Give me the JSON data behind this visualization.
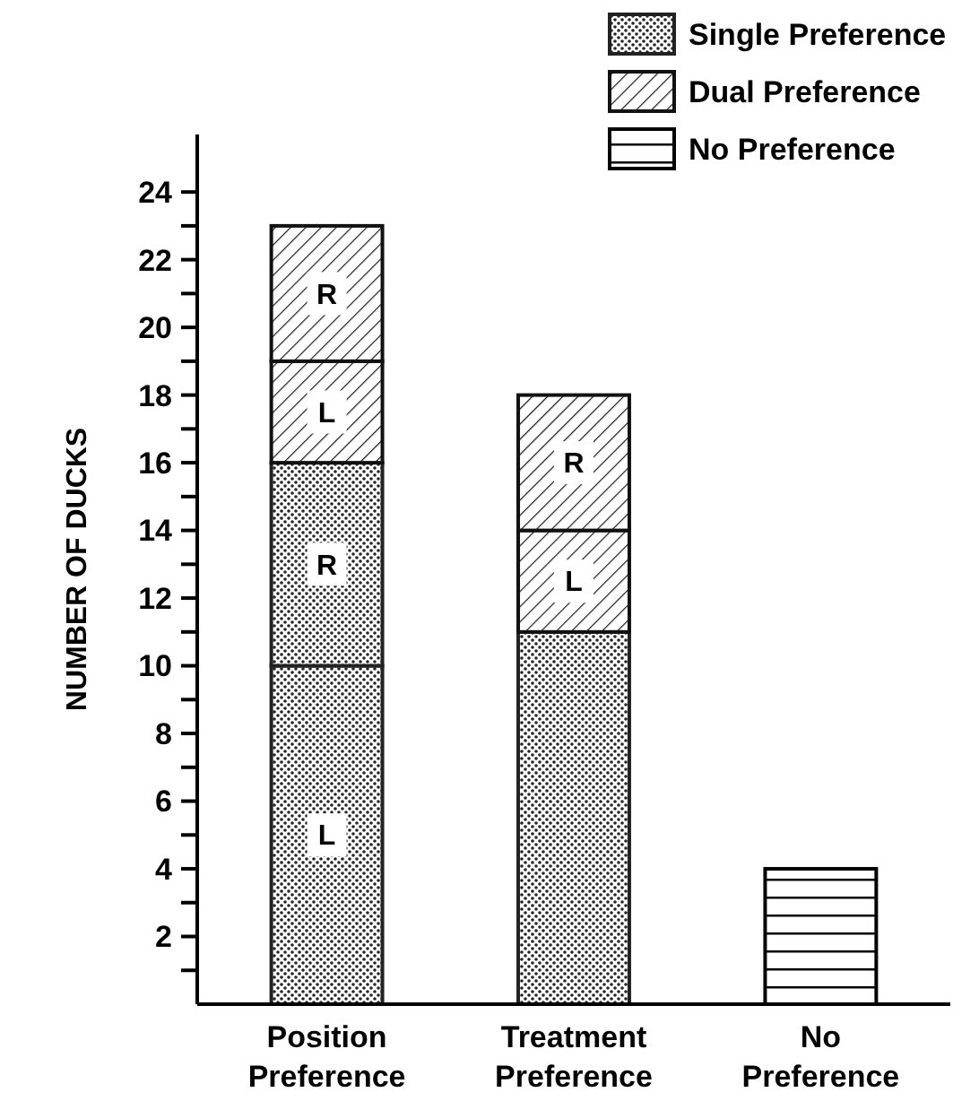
{
  "chart_data": {
    "type": "bar",
    "stacked": true,
    "ylabel": "NUMBER OF DUCKS",
    "categories": [
      "Position Preference",
      "Treatment Preference",
      "No Preference"
    ],
    "series": [
      {
        "name": "Single Preference",
        "color": "#222222",
        "values": [
          10,
          11,
          null
        ],
        "value_labels": [
          "L",
          null,
          null
        ]
      },
      {
        "color": "#222222",
        "values": [
          6,
          null,
          null
        ],
        "value_labels": [
          "R",
          null,
          null
        ]
      },
      {
        "name": "Dual Preference",
        "color": "#111111",
        "values": [
          3,
          3,
          null
        ],
        "value_labels": [
          "L",
          "L",
          null
        ]
      },
      {
        "color": "#111111",
        "values": [
          4,
          4,
          null
        ],
        "value_labels": [
          "R",
          "R",
          null
        ]
      },
      {
        "name": "No Preference",
        "color": "#000000",
        "values": [
          null,
          null,
          4
        ]
      }
    ],
    "ylim": [
      0,
      25.7
    ],
    "yticks": [
      {
        "value": 1,
        "label": null
      },
      2,
      {
        "value": 3,
        "label": null
      },
      4,
      {
        "value": 5,
        "label": null
      },
      6,
      {
        "value": 7,
        "label": null
      },
      8,
      {
        "value": 9,
        "label": null
      },
      10,
      {
        "value": 11,
        "label": null
      },
      12,
      {
        "value": 13,
        "label": null
      },
      14,
      {
        "value": 15,
        "label": null
      },
      16,
      {
        "value": 17,
        "label": null
      },
      18,
      {
        "value": 19,
        "label": null
      },
      20,
      {
        "value": 21,
        "label": null
      },
      22,
      {
        "value": 23,
        "label": null
      },
      24
    ],
    "legend": "top right",
    "grid": false
  }
}
